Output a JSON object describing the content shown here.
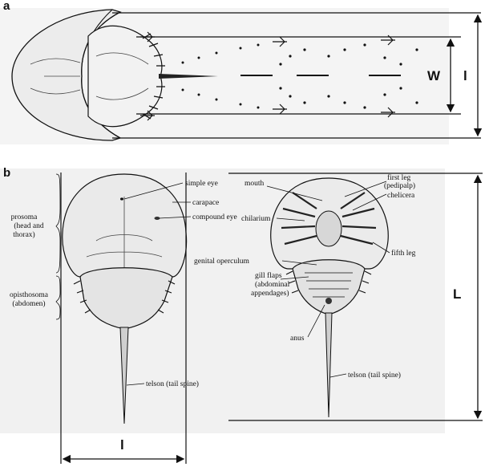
{
  "panel_a": {
    "letter": "a",
    "dimensions": [
      "W",
      "l"
    ]
  },
  "panel_b": {
    "letter": "b",
    "dimensions": [
      "L",
      "l"
    ],
    "dorsal_labels": {
      "simple_eye": "simple eye",
      "carapace": "carapace",
      "compound_eye": "compound eye",
      "prosoma": [
        "prosoma",
        "(head and",
        "thorax)"
      ],
      "opisthosoma": [
        "opisthosoma",
        "(abdomen)"
      ],
      "telson": "telson (tail spine)"
    },
    "ventral_labels": {
      "mouth": "mouth",
      "first_leg": [
        "first leg",
        "(pedipalp)"
      ],
      "chelicera": "chelicera",
      "chilarium": "chilarium",
      "fifth_leg": "fifth leg",
      "genital_operculum": "genital operculum",
      "gill_flaps": [
        "gill flaps",
        "(abdominal",
        "appendages)"
      ],
      "anus": "anus",
      "telson": "telson (tail spine)"
    }
  }
}
